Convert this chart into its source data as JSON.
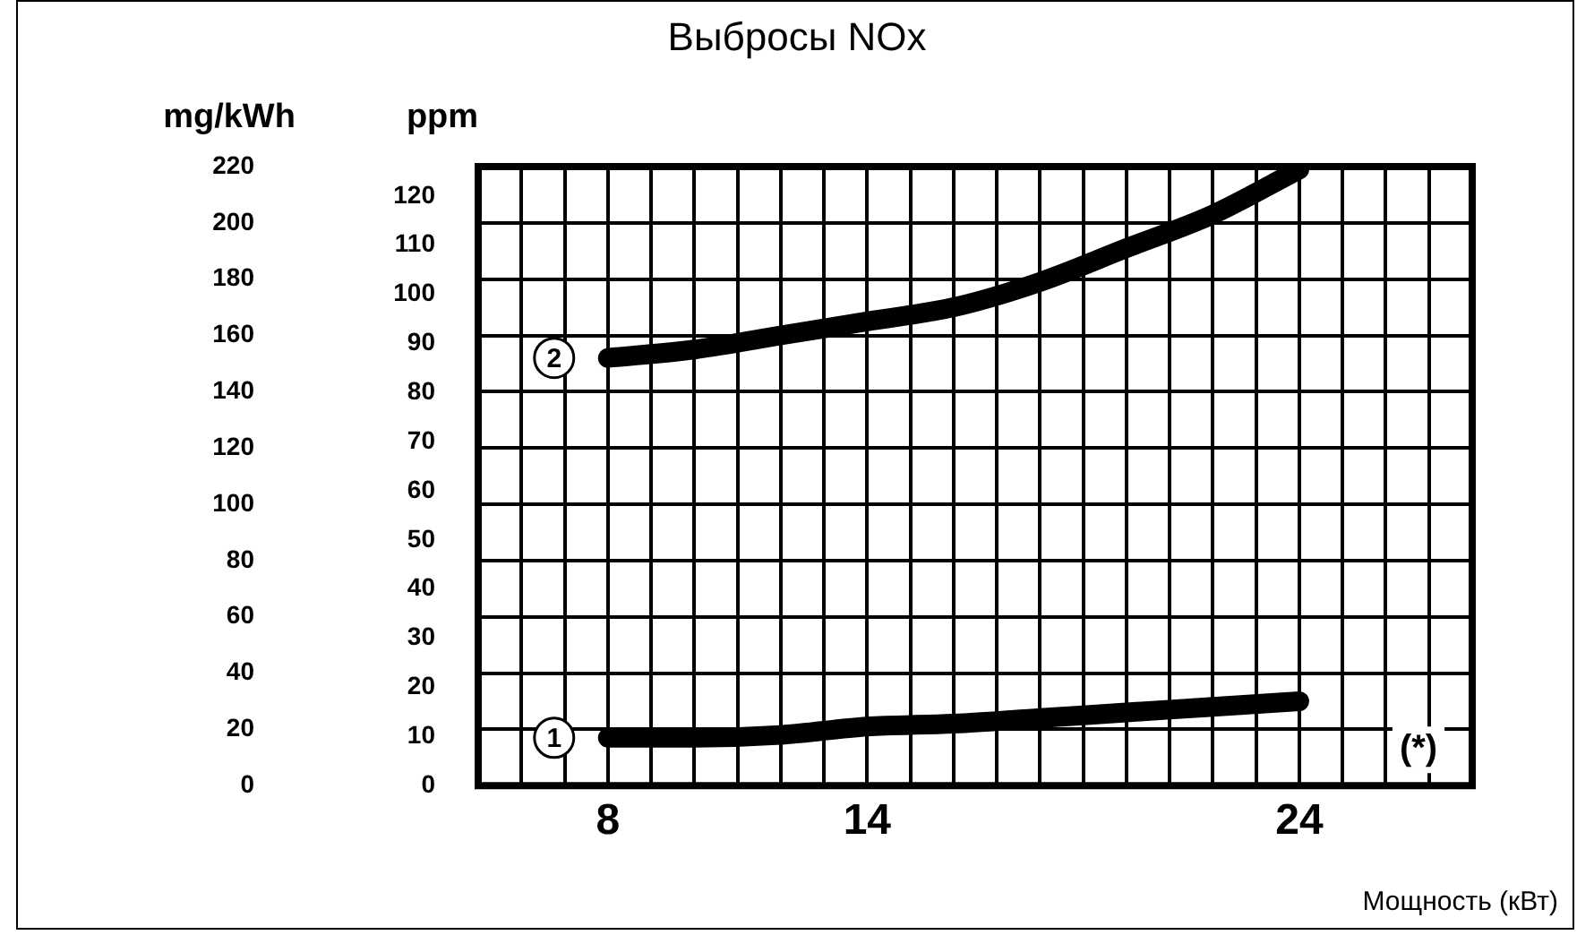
{
  "chart_data": {
    "type": "line",
    "title": "Выбросы NOx",
    "xlabel": "Мощность (кВт)",
    "ylabel": "ppm",
    "y2label": "mg/kWh",
    "x": [
      8,
      10,
      12,
      14,
      16,
      18,
      20,
      22,
      24
    ],
    "series": [
      {
        "name": "1",
        "color": "#000000",
        "axis": "y2",
        "values": [
          17,
          17,
          18,
          21,
          22,
          24,
          26,
          28,
          30
        ]
      },
      {
        "name": "2",
        "color": "#000000",
        "axis": "y2",
        "values": [
          152,
          155,
          160,
          165,
          170,
          179,
          191,
          203,
          219
        ]
      }
    ],
    "xlim": [
      5,
      28
    ],
    "xticks": [
      {
        "value": 5,
        "label": null
      },
      {
        "value": 6,
        "label": null
      },
      {
        "value": 7,
        "label": null
      },
      8,
      {
        "value": 9,
        "label": null
      },
      {
        "value": 10,
        "label": null
      },
      {
        "value": 11,
        "label": null
      },
      {
        "value": 12,
        "label": null
      },
      {
        "value": 13,
        "label": null
      },
      14,
      {
        "value": 15,
        "label": null
      },
      {
        "value": 16,
        "label": null
      },
      {
        "value": 17,
        "label": null
      },
      {
        "value": 18,
        "label": null
      },
      {
        "value": 19,
        "label": null
      },
      {
        "value": 20,
        "label": null
      },
      {
        "value": 21,
        "label": null
      },
      {
        "value": 22,
        "label": null
      },
      {
        "value": 23,
        "label": null
      },
      24,
      {
        "value": 25,
        "label": null
      },
      {
        "value": 26,
        "label": null
      },
      {
        "value": 27,
        "label": null
      },
      {
        "value": 28,
        "label": null
      }
    ],
    "ylim": [
      0,
      126
    ],
    "yticks": [
      0,
      10,
      20,
      30,
      40,
      50,
      60,
      70,
      80,
      90,
      100,
      110,
      120
    ],
    "y2lim": [
      0,
      220
    ],
    "y2ticks": [
      0,
      20,
      40,
      60,
      80,
      100,
      120,
      140,
      160,
      180,
      200,
      220
    ],
    "grid": true,
    "legend": false,
    "marker": "none",
    "line_style": "solid",
    "annotations": [
      "(*)"
    ]
  }
}
